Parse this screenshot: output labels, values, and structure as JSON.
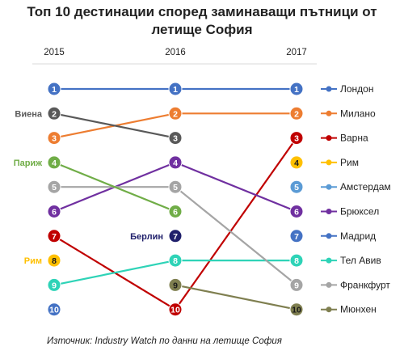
{
  "chart_data": {
    "type": "line",
    "subtype": "bump",
    "title_lines": [
      "Топ 10 дестинации според заминаващи пътници от",
      "летище София"
    ],
    "x": [
      "2015",
      "2016",
      "2017"
    ],
    "y_axis": "rank, reversed (1 at top)",
    "ylim": [
      1,
      10
    ],
    "series": [
      {
        "name": "Лондон",
        "color": "#4472C4",
        "ranks": [
          1,
          1,
          1
        ]
      },
      {
        "name": "Милано",
        "color": "#ED7D31",
        "ranks": [
          3,
          2,
          2
        ]
      },
      {
        "name": "Варна",
        "color": "#C00000",
        "ranks": [
          7,
          10,
          3
        ]
      },
      {
        "name": "Рим",
        "color": "#FFC000",
        "ranks": [
          8,
          null,
          4
        ]
      },
      {
        "name": "Амстердам",
        "color": "#5B9BD5",
        "ranks": [
          null,
          null,
          5
        ]
      },
      {
        "name": "Брюксел",
        "color": "#7030A0",
        "ranks": [
          6,
          4,
          6
        ]
      },
      {
        "name": "Мадрид",
        "color": "#4472C4",
        "ranks": [
          10,
          null,
          7
        ]
      },
      {
        "name": "Тел Авив",
        "color": "#2ED3B7",
        "ranks": [
          9,
          8,
          8
        ]
      },
      {
        "name": "Франкфурт",
        "color": "#A5A5A5",
        "ranks": [
          5,
          5,
          9
        ]
      },
      {
        "name": "Мюнхен",
        "color": "#7F7F50",
        "ranks": [
          null,
          9,
          10
        ]
      },
      {
        "name": "Виена",
        "color": "#595959",
        "ranks": [
          2,
          3,
          null
        ]
      },
      {
        "name": "Париж",
        "color": "#70AD47",
        "ranks": [
          4,
          6,
          null
        ]
      },
      {
        "name": "Берлин",
        "color": "#1F1F6B",
        "ranks": [
          null,
          7,
          null
        ]
      }
    ],
    "side_labels": [
      {
        "text": "Виена",
        "year": "2015",
        "rank": 2,
        "color": "#595959"
      },
      {
        "text": "Париж",
        "year": "2015",
        "rank": 4,
        "color": "#70AD47"
      },
      {
        "text": "Рим",
        "year": "2015",
        "rank": 8,
        "color": "#FFC000"
      },
      {
        "text": "Берлин",
        "year": "2016",
        "rank": 7,
        "color": "#1F1F6B"
      }
    ],
    "legend": {
      "position": "right",
      "entries": [
        "Лондон",
        "Милано",
        "Варна",
        "Рим",
        "Амстердам",
        "Брюксел",
        "Мадрид",
        "Тел Авив",
        "Франкфурт",
        "Мюнхен"
      ]
    },
    "grid": false,
    "source": "Източник: Industry Watch по данни на летище София"
  }
}
